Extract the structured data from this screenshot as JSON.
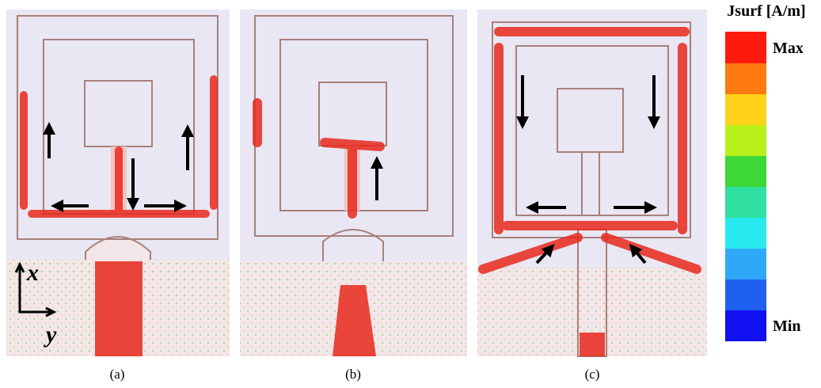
{
  "legend": {
    "title": "Jsurf [A/m]",
    "max_label": "Max",
    "min_label": "Min"
  },
  "axes": {
    "x": "x",
    "y": "y"
  },
  "panels": [
    {
      "label": "(a)"
    },
    {
      "label": "(b)"
    },
    {
      "label": "(c)"
    }
  ]
}
